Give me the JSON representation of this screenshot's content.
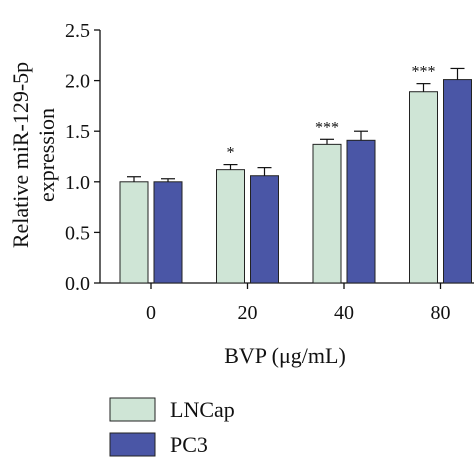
{
  "chart_data": {
    "type": "bar",
    "title": "",
    "xlabel": "BVP (μg/mL)",
    "ylabel": [
      "Relative miR-129-5p",
      "expression"
    ],
    "ylim": [
      0,
      2.5
    ],
    "yticks": [
      "0.0",
      "0.5",
      "1.0",
      "1.5",
      "2.0",
      "2.5"
    ],
    "categories": [
      "0",
      "20",
      "40",
      "80"
    ],
    "series": [
      {
        "name": "LNCap",
        "color": "#cfe5d6",
        "values": [
          1.0,
          1.12,
          1.37,
          1.89
        ],
        "errors": [
          0.05,
          0.05,
          0.05,
          0.08
        ]
      },
      {
        "name": "PC3",
        "color": "#4a56a6",
        "values": [
          1.0,
          1.06,
          1.41,
          2.01
        ],
        "errors": [
          0.03,
          0.08,
          0.09,
          0.11
        ]
      }
    ],
    "significance": [
      "",
      "*",
      "***",
      "***"
    ],
    "legend_position": "bottom-left",
    "grid": false
  }
}
